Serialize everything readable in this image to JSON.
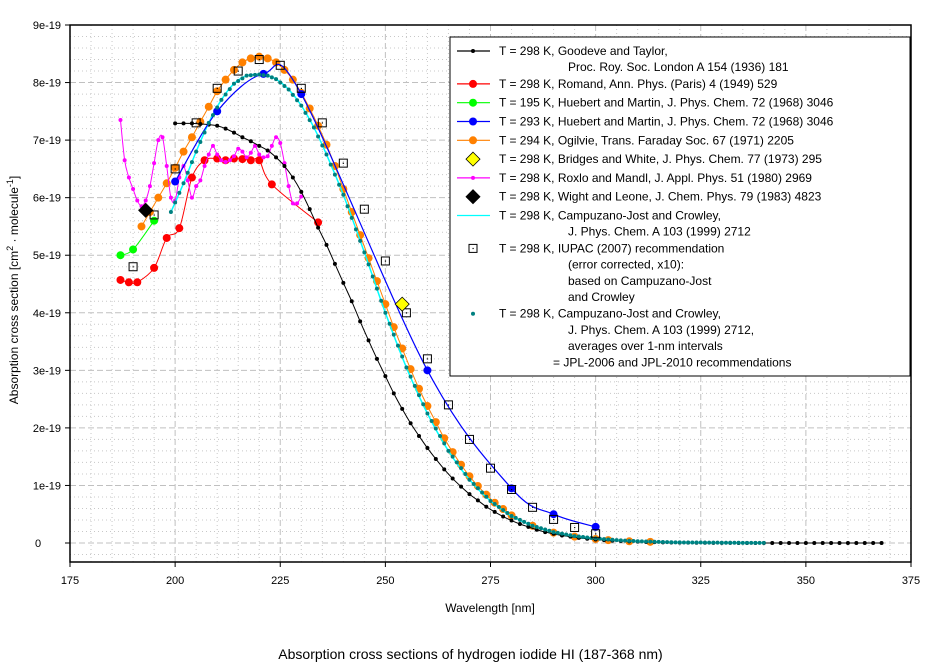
{
  "caption": "Absorption cross sections of hydrogen iodide HI (187-368 nm)",
  "chart_data": {
    "type": "line",
    "title": "Absorption cross sections of hydrogen iodide HI (187-368 nm)",
    "xlabel": "Wavelength [nm]",
    "ylabel": "Absorption cross section [cm2 · molecule-1]",
    "ylabel_parts": {
      "main": "Absorption cross section [cm",
      "sup1": "2",
      "mid": " · molecule",
      "sup2": "-1",
      "end": "]"
    },
    "xlim": [
      175,
      375
    ],
    "ylim": [
      -3.3e-20,
      9e-19
    ],
    "x_ticks": [
      175,
      200,
      225,
      250,
      275,
      300,
      325,
      350,
      375
    ],
    "x_tick_labels": [
      "175",
      "200",
      "225",
      "250",
      "275",
      "300",
      "325",
      "350",
      "375"
    ],
    "y_ticks": [
      0,
      1e-19,
      2e-19,
      3e-19,
      4e-19,
      5e-19,
      6e-19,
      7e-19,
      8e-19,
      9e-19
    ],
    "y_tick_labels": [
      "0",
      "1e-19",
      "2e-19",
      "3e-19",
      "4e-19",
      "5e-19",
      "6e-19",
      "7e-19",
      "8e-19",
      "9e-19"
    ],
    "grid": true,
    "legend_position": "top-right",
    "series": [
      {
        "name": "T = 298 K, Goodeve and Taylor,",
        "name_line2": "Proc. Roy. Soc. London A 154 (1936) 181",
        "color": "#000000",
        "marker": "dot-small",
        "line": true,
        "x": [
          200,
          202,
          204,
          206,
          208,
          210,
          212,
          214,
          216,
          218,
          220,
          222,
          224,
          226,
          228,
          230,
          232,
          234,
          236,
          238,
          240,
          242,
          244,
          246,
          248,
          250,
          252,
          254,
          256,
          258,
          260,
          262,
          264,
          266,
          268,
          270,
          272,
          274,
          276,
          278,
          280,
          282,
          284,
          286,
          288,
          290,
          292,
          294,
          296,
          298,
          300,
          302,
          304,
          306,
          308,
          310,
          312,
          314,
          316,
          318,
          320,
          322,
          324,
          326,
          328,
          330,
          332,
          334,
          336,
          338,
          340,
          342,
          344,
          346,
          348,
          350,
          352,
          354,
          356,
          358,
          360,
          362,
          364,
          366,
          368
        ],
        "y": [
          7.29,
          7.29,
          7.29,
          7.28,
          7.27,
          7.25,
          7.2,
          7.13,
          7.05,
          6.98,
          6.9,
          6.82,
          6.7,
          6.55,
          6.35,
          6.1,
          5.8,
          5.48,
          5.18,
          4.85,
          4.52,
          4.2,
          3.85,
          3.52,
          3.2,
          2.9,
          2.6,
          2.33,
          2.08,
          1.86,
          1.65,
          1.46,
          1.28,
          1.12,
          0.98,
          0.85,
          0.74,
          0.63,
          0.54,
          0.46,
          0.39,
          0.33,
          0.28,
          0.23,
          0.19,
          0.16,
          0.13,
          0.11,
          0.09,
          0.075,
          0.062,
          0.051,
          0.042,
          0.034,
          0.028,
          0.023,
          0.018,
          0.015,
          0.012,
          0.009,
          0.007,
          0.006,
          0.005,
          0.004,
          0.003,
          0.002,
          0.002,
          0.001,
          0.001,
          0.001,
          0.0,
          0.0,
          0.0,
          0.0,
          0.0,
          0.0,
          0.0,
          0.0,
          0.0,
          0.0,
          0.0,
          0.0,
          0.0,
          0.0,
          0.0
        ],
        "y_unit": "1e-19"
      },
      {
        "name": "T = 298 K, Romand, Ann. Phys. (Paris) 4 (1949) 529",
        "color": "#ff0000",
        "marker": "dot-large",
        "line": true,
        "x": [
          187,
          189,
          191,
          195,
          198,
          201,
          204,
          207,
          210,
          212,
          214,
          216,
          218,
          220,
          223,
          234
        ],
        "y": [
          4.57,
          4.53,
          4.53,
          4.78,
          5.3,
          5.47,
          6.35,
          6.65,
          6.68,
          6.65,
          6.68,
          6.67,
          6.65,
          6.65,
          6.23,
          5.57
        ],
        "y_unit": "1e-19"
      },
      {
        "name": "T = 195 K, Huebert and Martin, J. Phys. Chem. 72 (1968) 3046",
        "color": "#00ff00",
        "marker": "dot-large",
        "line": true,
        "x": [
          187,
          190,
          195
        ],
        "y": [
          5.0,
          5.1,
          5.6
        ],
        "y_unit": "1e-19"
      },
      {
        "name": "T = 293 K, Huebert and Martin, J. Phys. Chem. 72 (1968) 3046",
        "color": "#0000ff",
        "marker": "dot-large",
        "line": true,
        "x": [
          200,
          210,
          221,
          230,
          260,
          280,
          290,
          300
        ],
        "y": [
          6.28,
          7.5,
          8.15,
          7.8,
          3.0,
          0.95,
          0.5,
          0.28
        ],
        "y_unit": "1e-19"
      },
      {
        "name": "T = 294 K, Ogilvie, Trans. Faraday Soc. 67 (1971) 2205",
        "color": "#ff8000",
        "marker": "dot-large",
        "line": true,
        "x": [
          192,
          194,
          196,
          198,
          200,
          202,
          204,
          206,
          208,
          210,
          212,
          214,
          216,
          218,
          220,
          222,
          224,
          226,
          228,
          230,
          232,
          234,
          236,
          238,
          240,
          242,
          244,
          246,
          248,
          250,
          252,
          254,
          256,
          258,
          260,
          262,
          264,
          266,
          268,
          270,
          272,
          274,
          276,
          278,
          280,
          285,
          290,
          295,
          300,
          303,
          308,
          313
        ],
        "y": [
          5.5,
          5.75,
          6.0,
          6.25,
          6.52,
          6.8,
          7.05,
          7.32,
          7.58,
          7.85,
          8.05,
          8.22,
          8.35,
          8.42,
          8.45,
          8.42,
          8.35,
          8.22,
          8.05,
          7.82,
          7.55,
          7.25,
          6.92,
          6.55,
          6.15,
          5.75,
          5.35,
          4.95,
          4.55,
          4.15,
          3.75,
          3.38,
          3.02,
          2.68,
          2.38,
          2.1,
          1.82,
          1.58,
          1.36,
          1.16,
          0.99,
          0.84,
          0.7,
          0.59,
          0.48,
          0.3,
          0.18,
          0.11,
          0.07,
          0.05,
          0.03,
          0.02
        ],
        "y_unit": "1e-19"
      },
      {
        "name": "T = 298 K, Bridges and White, J. Phys. Chem. 77 (1973) 295",
        "color": "#ffff00",
        "marker": "diamond",
        "line": false,
        "x": [
          254
        ],
        "y": [
          4.15
        ],
        "y_unit": "1e-19"
      },
      {
        "name": "T = 298 K, Roxlo and Mandl, J. Appl. Phys. 51 (1980) 2969",
        "color": "#ff00ff",
        "marker": "dot-small",
        "line": true,
        "x": [
          187,
          188,
          189,
          190,
          191,
          192,
          193,
          194,
          195,
          196,
          197,
          198,
          199,
          200,
          201,
          202,
          203,
          204,
          205,
          206,
          207,
          208,
          209,
          210,
          211,
          212,
          213,
          214,
          215,
          216,
          217,
          218,
          219,
          220,
          221,
          222,
          223,
          224,
          225,
          226,
          227,
          228,
          229,
          230
        ],
        "y": [
          7.35,
          6.65,
          6.35,
          6.15,
          5.95,
          5.85,
          5.95,
          6.2,
          6.6,
          7.0,
          7.05,
          6.55,
          6.0,
          5.95,
          6.35,
          6.55,
          6.3,
          6.0,
          6.2,
          6.3,
          6.55,
          6.75,
          6.9,
          6.75,
          6.65,
          6.62,
          6.65,
          6.72,
          6.85,
          6.8,
          6.7,
          6.78,
          6.9,
          6.75,
          6.7,
          6.72,
          6.9,
          7.05,
          6.95,
          6.6,
          6.2,
          5.9,
          5.9,
          6.02
        ],
        "y_unit": "1e-19"
      },
      {
        "name": "T = 298 K, Wight and Leone, J. Chem. Phys. 79 (1983) 4823",
        "color": "#000000",
        "marker": "diamond",
        "line": false,
        "x": [
          193
        ],
        "y": [
          5.78
        ],
        "y_unit": "1e-19"
      },
      {
        "name": "T = 298 K, Campuzano-Jost and Crowley,",
        "name_line2": "J. Phys. Chem. A 103 (1999) 2712",
        "color": "#00ffff",
        "marker": "none",
        "line": true,
        "x": [
          199,
          202,
          205,
          208,
          211,
          214,
          217,
          220,
          222,
          224,
          227,
          230,
          233,
          236,
          240,
          245,
          250,
          255,
          260,
          265,
          270,
          275,
          280,
          285,
          290,
          295,
          300,
          305,
          310,
          315,
          320,
          325,
          330,
          335,
          340
        ],
        "y": [
          5.75,
          6.25,
          6.8,
          7.3,
          7.7,
          7.98,
          8.12,
          8.14,
          8.12,
          8.06,
          7.88,
          7.6,
          7.22,
          6.75,
          6.05,
          5.05,
          4.0,
          3.05,
          2.25,
          1.6,
          1.1,
          0.73,
          0.47,
          0.3,
          0.19,
          0.12,
          0.08,
          0.05,
          0.03,
          0.02,
          0.01,
          0.008,
          0.005,
          0.003,
          0.002
        ],
        "y_unit": "1e-19"
      },
      {
        "name": "T = 298 K, IUPAC (2007) recommendation",
        "name_line2": "(error corrected, x10):",
        "name_line3": "based on Campuzano-Jost",
        "name_line4": "and Crowley",
        "color": "#000000",
        "marker": "square-open",
        "line": false,
        "x": [
          190,
          195,
          200,
          205,
          210,
          215,
          220,
          225,
          230,
          235,
          240,
          245,
          250,
          255,
          260,
          265,
          270,
          275,
          280,
          285,
          290,
          295,
          300
        ],
        "y": [
          4.8,
          5.7,
          6.5,
          7.3,
          7.9,
          8.2,
          8.4,
          8.3,
          7.9,
          7.3,
          6.6,
          5.8,
          4.9,
          4.0,
          3.2,
          2.4,
          1.8,
          1.3,
          0.93,
          0.62,
          0.41,
          0.27,
          0.16
        ],
        "y_unit": "1e-19"
      },
      {
        "name": "T = 298 K, Campuzano-Jost and Crowley,",
        "name_line2": "J. Phys. Chem. A 103 (1999) 2712,",
        "name_line3": "averages over 1-nm intervals",
        "name_line4": "= JPL-2006 and JPL-2010 recommendations",
        "color": "#008080",
        "marker": "dot-teal",
        "line": false,
        "x_start": 199,
        "x_end": 340,
        "x_step": 1,
        "y_note": "follows Campuzano-Jost and Crowley curve"
      }
    ]
  }
}
